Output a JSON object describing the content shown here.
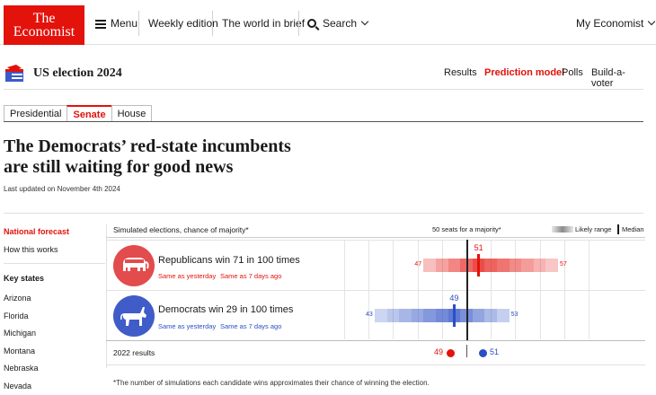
{
  "brand": {
    "line1": "The",
    "line2": "Economist",
    "color": "#e3120b"
  },
  "topnav": {
    "menu": "Menu",
    "weekly": "Weekly edition",
    "world": "The world in brief",
    "search": "Search",
    "account": "My Economist"
  },
  "section": {
    "title": "US election 2024",
    "links": [
      "Results",
      "Prediction model",
      "Polls",
      "Build-a-voter"
    ],
    "active_link": "Prediction model"
  },
  "tabs": [
    "Presidential",
    "Senate",
    "House"
  ],
  "active_tab": "Senate",
  "article": {
    "headline_1": "The Democrats’ red-state incumbents",
    "headline_2": "are still waiting for good news",
    "updated": "Last updated on November 4th 2024"
  },
  "sidebar": {
    "national": "National forecast",
    "how": "How this works",
    "key_states_heading": "Key states",
    "states": [
      "Arizona",
      "Florida",
      "Michigan",
      "Montana",
      "Nebraska",
      "Nevada"
    ]
  },
  "forecast": {
    "title": "Simulated elections, chance of majority*",
    "majority_label": "50 seats for a majority*",
    "likely_label": "Likely range",
    "median_label": "Median",
    "seats_min": 40,
    "seats_max": 60,
    "majority_seats": 50,
    "rows": [
      {
        "party": "Republicans",
        "text": "Republicans win 71 in 100 times",
        "same_yesterday": "Same as yesterday",
        "same_week": "Same as 7 days ago",
        "median": 51,
        "low": 47,
        "high": 57,
        "color": "#e3120b",
        "icon_bg": "#e24c4c",
        "icon": "elephant-icon"
      },
      {
        "party": "Democrats",
        "text": "Democrats win 29 in 100 times",
        "same_yesterday": "Same as yesterday",
        "same_week": "Same as 7 days ago",
        "median": 49,
        "low": 43,
        "high": 53,
        "color": "#2a4ec4",
        "icon_bg": "#3f5cc9",
        "icon": "donkey-icon"
      }
    ],
    "results_2022_label": "2022 results",
    "results_2022": {
      "rep": "49",
      "dem": "51"
    },
    "footnote": "*The number of simulations each candidate wins approximates their chance of winning the election."
  }
}
